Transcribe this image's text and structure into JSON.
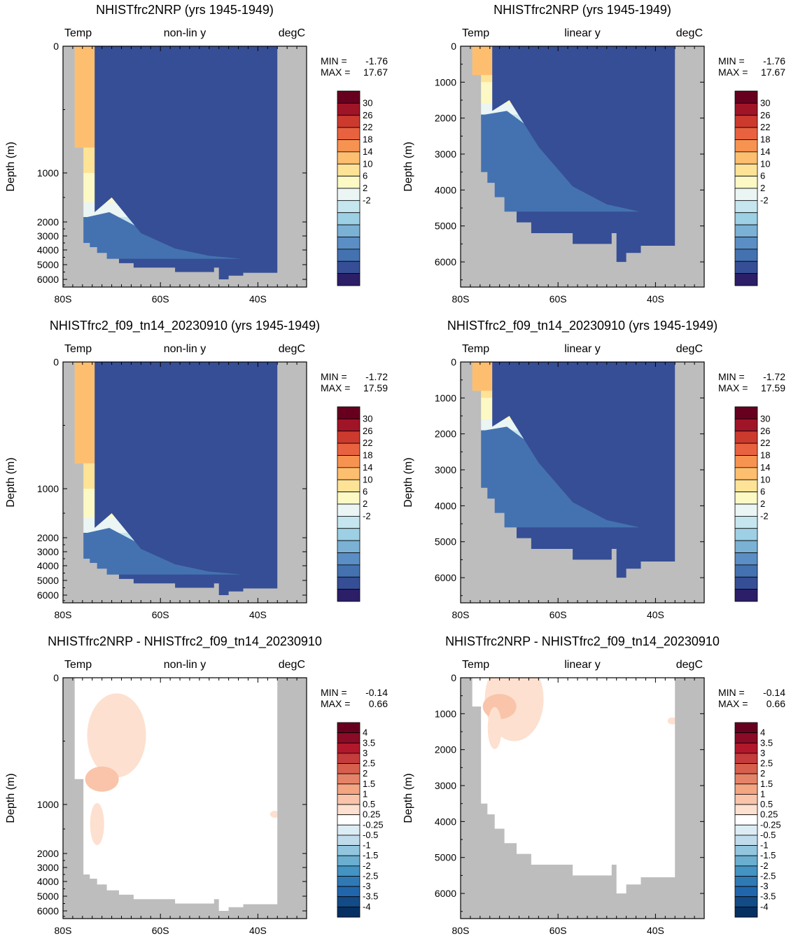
{
  "chart_data": [
    {
      "type": "heatmap",
      "title": "NHISTfrc2NRP (yrs 1945-1949)",
      "left_label": "Temp",
      "center_label": "non-lin y",
      "right_label": "degC",
      "ylabel": "Depth (m)",
      "yticks": [
        "0",
        "1000",
        "2000",
        "3000",
        "4000",
        "5000",
        "6000"
      ],
      "xticks": [
        "80S",
        "60S",
        "40S"
      ],
      "xlim": [
        80,
        30
      ],
      "ylim": [
        0,
        6700
      ],
      "y_scale": "non-linear",
      "stats": {
        "min_label": "MIN =",
        "min": "-1.76",
        "max_label": "MAX =",
        "max": "17.67"
      },
      "colorbar": {
        "labels": [
          "30",
          "26",
          "22",
          "18",
          "14",
          "10",
          "6",
          "2",
          "-2"
        ],
        "colors": [
          "#67001f",
          "#a01427",
          "#cc3a2e",
          "#e9623f",
          "#f79351",
          "#fdbf6f",
          "#fee397",
          "#fdf9c4",
          "#eaf5f4",
          "#c6e6ef",
          "#9dd0e4",
          "#7ab1d4",
          "#5b8ec4",
          "#4472b0",
          "#364e95",
          "#2c1e67"
        ]
      },
      "mode": "temp"
    },
    {
      "type": "heatmap",
      "title": "NHISTfrc2NRP (yrs 1945-1949)",
      "left_label": "Temp",
      "center_label": "linear y",
      "right_label": "degC",
      "ylabel": "Depth (m)",
      "yticks": [
        "0",
        "1000",
        "2000",
        "3000",
        "4000",
        "5000",
        "6000"
      ],
      "xticks": [
        "80S",
        "60S",
        "40S"
      ],
      "xlim": [
        80,
        30
      ],
      "ylim": [
        0,
        6700
      ],
      "y_scale": "linear",
      "stats": {
        "min_label": "MIN =",
        "min": "-1.76",
        "max_label": "MAX =",
        "max": "17.67"
      },
      "colorbar": {
        "labels": [
          "30",
          "26",
          "22",
          "18",
          "14",
          "10",
          "6",
          "2",
          "-2"
        ],
        "colors": [
          "#67001f",
          "#a01427",
          "#cc3a2e",
          "#e9623f",
          "#f79351",
          "#fdbf6f",
          "#fee397",
          "#fdf9c4",
          "#eaf5f4",
          "#c6e6ef",
          "#9dd0e4",
          "#7ab1d4",
          "#5b8ec4",
          "#4472b0",
          "#364e95",
          "#2c1e67"
        ]
      },
      "mode": "temp"
    },
    {
      "type": "heatmap",
      "title": "NHISTfrc2_f09_tn14_20230910 (yrs 1945-1949)",
      "left_label": "Temp",
      "center_label": "non-lin y",
      "right_label": "degC",
      "ylabel": "Depth (m)",
      "yticks": [
        "0",
        "1000",
        "2000",
        "3000",
        "4000",
        "5000",
        "6000"
      ],
      "xticks": [
        "80S",
        "60S",
        "40S"
      ],
      "xlim": [
        80,
        30
      ],
      "ylim": [
        0,
        6700
      ],
      "y_scale": "non-linear",
      "stats": {
        "min_label": "MIN =",
        "min": "-1.72",
        "max_label": "MAX =",
        "max": "17.59"
      },
      "colorbar": {
        "labels": [
          "30",
          "26",
          "22",
          "18",
          "14",
          "10",
          "6",
          "2",
          "-2"
        ],
        "colors": [
          "#67001f",
          "#a01427",
          "#cc3a2e",
          "#e9623f",
          "#f79351",
          "#fdbf6f",
          "#fee397",
          "#fdf9c4",
          "#eaf5f4",
          "#c6e6ef",
          "#9dd0e4",
          "#7ab1d4",
          "#5b8ec4",
          "#4472b0",
          "#364e95",
          "#2c1e67"
        ]
      },
      "mode": "temp"
    },
    {
      "type": "heatmap",
      "title": "NHISTfrc2_f09_tn14_20230910 (yrs 1945-1949)",
      "left_label": "Temp",
      "center_label": "linear y",
      "right_label": "degC",
      "ylabel": "Depth (m)",
      "yticks": [
        "0",
        "1000",
        "2000",
        "3000",
        "4000",
        "5000",
        "6000"
      ],
      "xticks": [
        "80S",
        "60S",
        "40S"
      ],
      "xlim": [
        80,
        30
      ],
      "ylim": [
        0,
        6700
      ],
      "y_scale": "linear",
      "stats": {
        "min_label": "MIN =",
        "min": "-1.72",
        "max_label": "MAX =",
        "max": "17.59"
      },
      "colorbar": {
        "labels": [
          "30",
          "26",
          "22",
          "18",
          "14",
          "10",
          "6",
          "2",
          "-2"
        ],
        "colors": [
          "#67001f",
          "#a01427",
          "#cc3a2e",
          "#e9623f",
          "#f79351",
          "#fdbf6f",
          "#fee397",
          "#fdf9c4",
          "#eaf5f4",
          "#c6e6ef",
          "#9dd0e4",
          "#7ab1d4",
          "#5b8ec4",
          "#4472b0",
          "#364e95",
          "#2c1e67"
        ]
      },
      "mode": "temp"
    },
    {
      "type": "heatmap",
      "title": "NHISTfrc2NRP - NHISTfrc2_f09_tn14_20230910",
      "left_label": "Temp",
      "center_label": "non-lin y",
      "right_label": "degC",
      "ylabel": "Depth (m)",
      "yticks": [
        "0",
        "1000",
        "2000",
        "3000",
        "4000",
        "5000",
        "6000"
      ],
      "xticks": [
        "80S",
        "60S",
        "40S"
      ],
      "xlim": [
        80,
        30
      ],
      "ylim": [
        0,
        6700
      ],
      "y_scale": "non-linear",
      "stats": {
        "min_label": "MIN =",
        "min": "-0.14",
        "max_label": "MAX =",
        "max": "0.66"
      },
      "colorbar": {
        "labels": [
          "4",
          "3.5",
          "3",
          "2.5",
          "2",
          "1.5",
          "1",
          "0.5",
          "0.25",
          "-0.25",
          "-0.5",
          "-1",
          "-1.5",
          "-2",
          "-2.5",
          "-3",
          "-3.5",
          "-4"
        ],
        "colors": [
          "#67001f",
          "#8a0b25",
          "#b2182b",
          "#c43c3c",
          "#d6604d",
          "#e58368",
          "#f4a582",
          "#f9c4a9",
          "#fde0d0",
          "#ffffff",
          "#dcecf4",
          "#c0dcec",
          "#92c5de",
          "#6aaed0",
          "#4393c3",
          "#2f79b5",
          "#2166ac",
          "#134b87",
          "#053061"
        ]
      },
      "mode": "diff"
    },
    {
      "type": "heatmap",
      "title": "NHISTfrc2NRP - NHISTfrc2_f09_tn14_20230910",
      "left_label": "Temp",
      "center_label": "linear y",
      "right_label": "degC",
      "ylabel": "Depth (m)",
      "yticks": [
        "0",
        "1000",
        "2000",
        "3000",
        "4000",
        "5000",
        "6000"
      ],
      "xticks": [
        "80S",
        "60S",
        "40S"
      ],
      "xlim": [
        80,
        30
      ],
      "ylim": [
        0,
        6700
      ],
      "y_scale": "linear",
      "stats": {
        "min_label": "MIN =",
        "min": "-0.14",
        "max_label": "MAX =",
        "max": "0.66"
      },
      "colorbar": {
        "labels": [
          "4",
          "3.5",
          "3",
          "2.5",
          "2",
          "1.5",
          "1",
          "0.5",
          "0.25",
          "-0.25",
          "-0.5",
          "-1",
          "-1.5",
          "-2",
          "-2.5",
          "-3",
          "-3.5",
          "-4"
        ],
        "colors": [
          "#67001f",
          "#8a0b25",
          "#b2182b",
          "#c43c3c",
          "#d6604d",
          "#e58368",
          "#f4a582",
          "#f9c4a9",
          "#fde0d0",
          "#ffffff",
          "#dcecf4",
          "#c0dcec",
          "#92c5de",
          "#6aaed0",
          "#4393c3",
          "#2f79b5",
          "#2166ac",
          "#134b87",
          "#053061"
        ]
      },
      "mode": "diff"
    }
  ],
  "colors": {
    "land": "#bdbdbd",
    "frame": "#000000"
  }
}
